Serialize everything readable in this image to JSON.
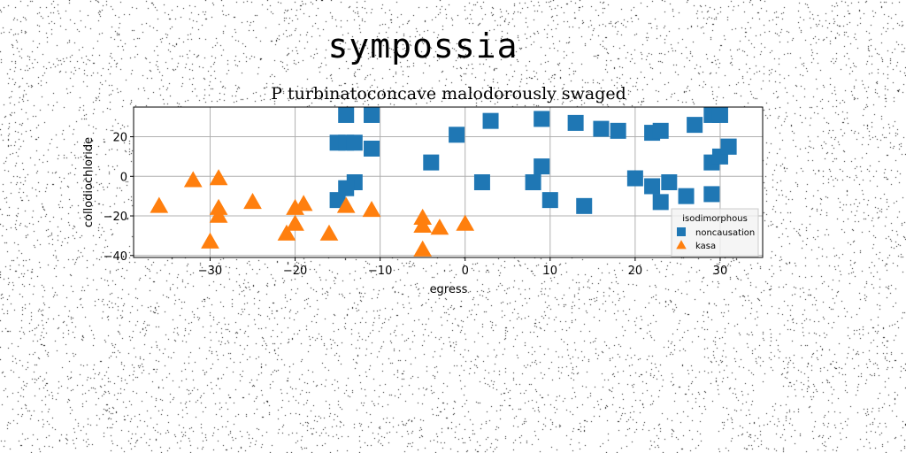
{
  "figure": {
    "suptitle": "sympossia"
  },
  "chart_data": {
    "type": "scatter",
    "title": "P turbinatoconcave malodorously swaged",
    "xlabel": "egress",
    "ylabel": "collodiochloride",
    "xlim": [
      -39,
      35
    ],
    "ylim": [
      -41,
      35
    ],
    "xticks": [
      -30,
      -20,
      -10,
      0,
      10,
      20,
      30
    ],
    "yticks": [
      -40,
      -20,
      0,
      20
    ],
    "xtick_labels": [
      "−30",
      "−20",
      "−10",
      "0",
      "10",
      "20",
      "30"
    ],
    "ytick_labels": [
      "−40",
      "−20",
      "0",
      "20"
    ],
    "grid": true,
    "legend": {
      "title": "isodimorphous",
      "placement": "lower-right"
    },
    "series": [
      {
        "name": "noncausation",
        "marker": "square",
        "color": "#1f77b4",
        "x": [
          -14,
          -11,
          3,
          9,
          13,
          16,
          18,
          22,
          27,
          29,
          30,
          31,
          -1,
          -15,
          -14,
          -13,
          -11,
          -4,
          9,
          23,
          29,
          30,
          31,
          2,
          8,
          20,
          22,
          24,
          26,
          29,
          10,
          14,
          23,
          -13,
          -14,
          -15
        ],
        "y": [
          31,
          31,
          28,
          29,
          27,
          24,
          23,
          22,
          26,
          31,
          31,
          15,
          21,
          17,
          17,
          17,
          14,
          7,
          5,
          23,
          7,
          10,
          15,
          -3,
          -3,
          -1,
          -5,
          -3,
          -10,
          -9,
          -12,
          -15,
          -13,
          -3,
          -6,
          -12
        ]
      },
      {
        "name": "kasa",
        "marker": "triangle",
        "color": "#ff7f0e",
        "x": [
          -36,
          -32,
          -29,
          -29,
          -29,
          -25,
          -30,
          -20,
          -19,
          -20,
          -21,
          -16,
          -14,
          -11,
          -5,
          -5,
          -3,
          0,
          -5
        ],
        "y": [
          -15,
          -2,
          -1,
          -16,
          -20,
          -13,
          -33,
          -16,
          -14,
          -24,
          -29,
          -29,
          -15,
          -17,
          -21,
          -25,
          -26,
          -24,
          -37
        ]
      }
    ]
  }
}
